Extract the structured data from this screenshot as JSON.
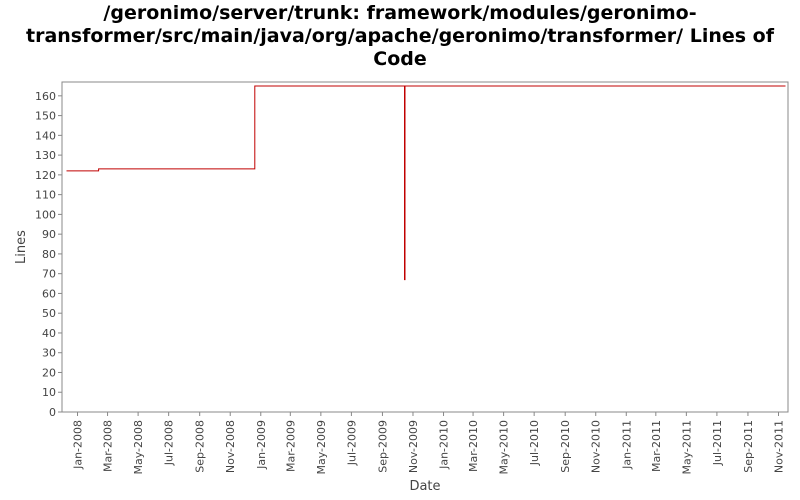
{
  "chart_data": {
    "type": "line",
    "title": "/geronimo/server/trunk: framework/modules/geronimo-transformer/src/main/java/org/apache/geronimo/transformer/ Lines of Code",
    "xlabel": "Date",
    "ylabel": "Lines",
    "ylim": [
      0,
      167
    ],
    "xlim": [
      "2007-12-01",
      "2011-11-20"
    ],
    "y_ticks": [
      0,
      10,
      20,
      30,
      40,
      50,
      60,
      70,
      80,
      90,
      100,
      110,
      120,
      130,
      140,
      150,
      160
    ],
    "x_ticks": [
      {
        "date": "2008-01-01",
        "label": "Jan-2008"
      },
      {
        "date": "2008-03-01",
        "label": "Mar-2008"
      },
      {
        "date": "2008-05-01",
        "label": "May-2008"
      },
      {
        "date": "2008-07-01",
        "label": "Jul-2008"
      },
      {
        "date": "2008-09-01",
        "label": "Sep-2008"
      },
      {
        "date": "2008-11-01",
        "label": "Nov-2008"
      },
      {
        "date": "2009-01-01",
        "label": "Jan-2009"
      },
      {
        "date": "2009-03-01",
        "label": "Mar-2009"
      },
      {
        "date": "2009-05-01",
        "label": "May-2009"
      },
      {
        "date": "2009-07-01",
        "label": "Jul-2009"
      },
      {
        "date": "2009-09-01",
        "label": "Sep-2009"
      },
      {
        "date": "2009-11-01",
        "label": "Nov-2009"
      },
      {
        "date": "2010-01-01",
        "label": "Jan-2010"
      },
      {
        "date": "2010-03-01",
        "label": "Mar-2010"
      },
      {
        "date": "2010-05-01",
        "label": "May-2010"
      },
      {
        "date": "2010-07-01",
        "label": "Jul-2010"
      },
      {
        "date": "2010-09-01",
        "label": "Sep-2010"
      },
      {
        "date": "2010-11-01",
        "label": "Nov-2010"
      },
      {
        "date": "2011-01-01",
        "label": "Jan-2011"
      },
      {
        "date": "2011-03-01",
        "label": "Mar-2011"
      },
      {
        "date": "2011-05-01",
        "label": "May-2011"
      },
      {
        "date": "2011-07-01",
        "label": "Jul-2011"
      },
      {
        "date": "2011-09-01",
        "label": "Sep-2011"
      },
      {
        "date": "2011-11-01",
        "label": "Nov-2011"
      }
    ],
    "grid": false,
    "step": true,
    "series": [
      {
        "color": "#c00000",
        "points": [
          {
            "x": "2007-12-10",
            "y": 122
          },
          {
            "x": "2008-02-12",
            "y": 122
          },
          {
            "x": "2008-02-12",
            "y": 123
          },
          {
            "x": "2008-12-20",
            "y": 123
          },
          {
            "x": "2008-12-20",
            "y": 165
          },
          {
            "x": "2009-10-15",
            "y": 165
          },
          {
            "x": "2009-10-15",
            "y": 67
          },
          {
            "x": "2009-10-16",
            "y": 67
          },
          {
            "x": "2009-10-16",
            "y": 165
          },
          {
            "x": "2011-11-15",
            "y": 165
          }
        ]
      }
    ]
  }
}
